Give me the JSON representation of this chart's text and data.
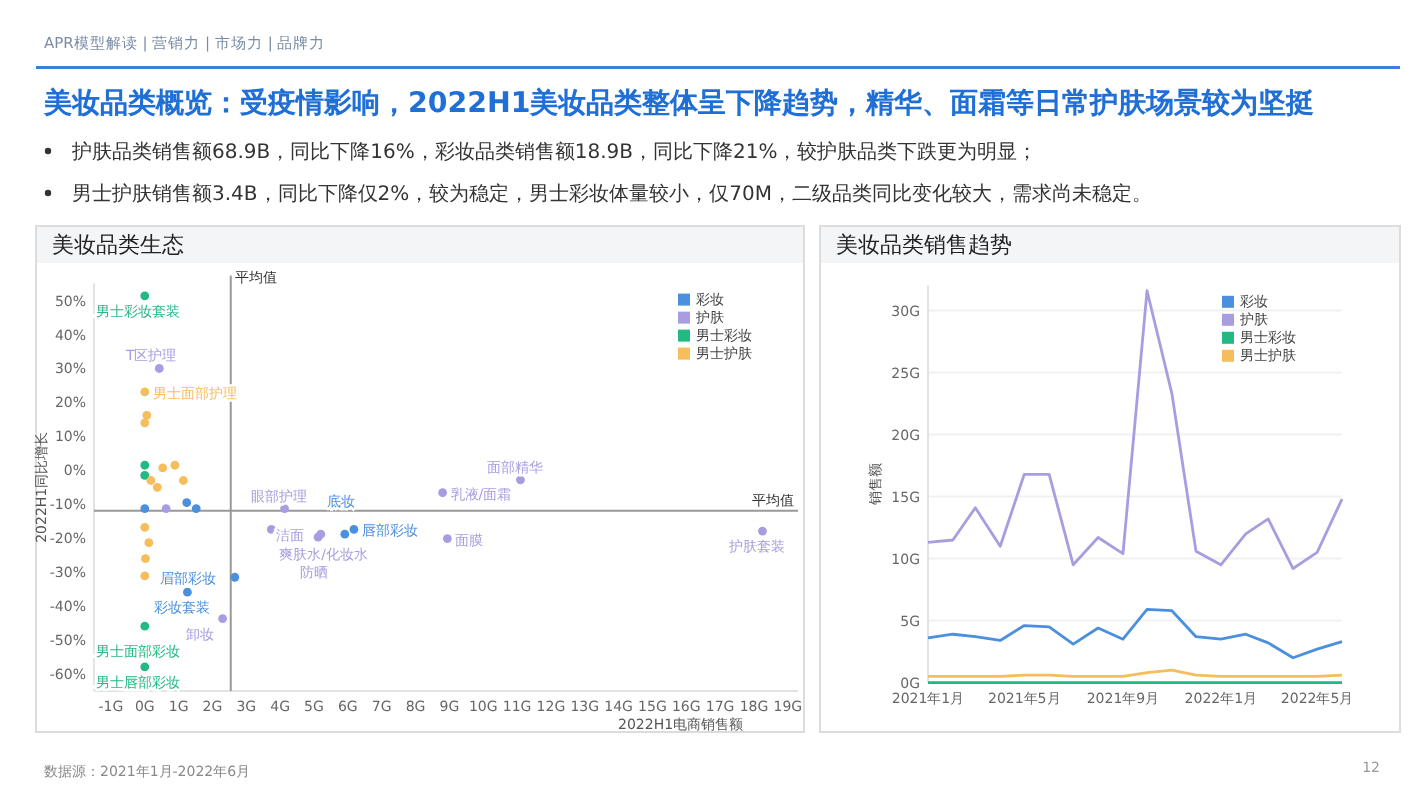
{
  "chart_data": [
    {
      "type": "scatter",
      "title": "美妆品类生态",
      "xlabel": "2022H1电商销售额",
      "ylabel": "2022H1同比增长",
      "xlim": [
        -1.5,
        19.3
      ],
      "ylim": [
        -65,
        55
      ],
      "xticks": [
        {
          "value": -1,
          "label": "-1G"
        },
        {
          "value": 0,
          "label": "0G"
        },
        {
          "value": 1,
          "label": "1G"
        },
        {
          "value": 2,
          "label": "2G"
        },
        {
          "value": 3,
          "label": "3G"
        },
        {
          "value": 4,
          "label": "4G"
        },
        {
          "value": 5,
          "label": "5G"
        },
        {
          "value": 6,
          "label": "6G"
        },
        {
          "value": 7,
          "label": "7G"
        },
        {
          "value": 8,
          "label": "8G"
        },
        {
          "value": 9,
          "label": "9G"
        },
        {
          "value": 10,
          "label": "10G"
        },
        {
          "value": 11,
          "label": "11G"
        },
        {
          "value": 12,
          "label": "12G"
        },
        {
          "value": 13,
          "label": "13G"
        },
        {
          "value": 14,
          "label": "14G"
        },
        {
          "value": 15,
          "label": "15G"
        },
        {
          "value": 16,
          "label": "16G"
        },
        {
          "value": 17,
          "label": "17G"
        },
        {
          "value": 18,
          "label": "18G"
        },
        {
          "value": 19,
          "label": "19G"
        }
      ],
      "yticks": [
        {
          "value": -60,
          "label": "-60%"
        },
        {
          "value": -50,
          "label": "-50%"
        },
        {
          "value": -40,
          "label": "-40%"
        },
        {
          "value": -30,
          "label": "-30%"
        },
        {
          "value": -20,
          "label": "-20%"
        },
        {
          "value": -10,
          "label": "-10%"
        },
        {
          "value": 0,
          "label": "0%"
        },
        {
          "value": 10,
          "label": "10%"
        },
        {
          "value": 20,
          "label": "20%"
        },
        {
          "value": 30,
          "label": "30%"
        },
        {
          "value": 40,
          "label": "40%"
        },
        {
          "value": 50,
          "label": "50%"
        }
      ],
      "legend": "top right",
      "marker": "circle",
      "series": [
        {
          "name": "彩妆",
          "color": "#4b8fdf",
          "x": [
            0,
            1.24,
            1.52,
            2.66,
            1.26,
            5.91,
            6.18
          ],
          "values": [
            -11.3,
            -9.5,
            -11.3,
            -31.5,
            -35.9,
            -18.8,
            -17.4
          ]
        },
        {
          "name": "护肤",
          "color": "#a89de0",
          "x": [
            0.43,
            0.63,
            4.13,
            3.74,
            5.12,
            5.2,
            2.3,
            8.8,
            11.1,
            8.94,
            18.25
          ],
          "values": [
            30,
            -11.3,
            -11.3,
            -17.4,
            -19.7,
            -18.8,
            -43.7,
            -6.6,
            -2.8,
            -20.1,
            -17.9
          ]
        },
        {
          "name": "男士彩妆",
          "color": "#22b983",
          "x": [
            0,
            0,
            0,
            0,
            0
          ],
          "values": [
            51.4,
            1.5,
            -1.5,
            -45.9,
            -57.9
          ]
        },
        {
          "name": "男士护肤",
          "color": "#f6bd5c",
          "x": [
            0,
            0.06,
            0,
            0.18,
            0.37,
            0.53,
            0.89,
            1.14,
            0,
            0.12,
            0.02,
            0
          ],
          "values": [
            23.1,
            16.2,
            14,
            -3,
            -5,
            0.7,
            1.5,
            -3,
            -16.8,
            -21.3,
            -26,
            -31.1
          ]
        }
      ],
      "ref_lines": [
        {
          "axis": "x",
          "value": 2.54,
          "label": "平均值"
        },
        {
          "axis": "y",
          "value": -11.9,
          "label": "平均值"
        }
      ],
      "annotations": [
        "APR模型解读 | 营销力 | 市场力 | 品牌力",
        "美妆品类概览：受疫情影响，2022H1美妆品类整体呈下降趋势，精华、面霜等日常护肤场景较为坚挺",
        "护肤品类销售额68.9B，同比下降16%，彩妆品类销售额18.9B，同比下降21%，较护肤品类下跌更为明显；",
        "男士护肤销售额3.4B，同比下降仅2%，较为稳定，男士彩妆体量较小，仅70M，二级品类同比变化较大，需求尚未稳定。",
        "数据源：2021年1月-2022年6月",
        "12",
        {
          "text": "男士彩妆套装",
          "x": 0,
          "y": 51.4
        },
        {
          "text": "T区护理",
          "x": 0.43,
          "y": 30
        },
        {
          "text": "男士面部护理",
          "x": 0,
          "y": 23.1
        },
        {
          "text": "眼部护理",
          "x": 4.13,
          "y": -11.3
        },
        {
          "text": "洁面",
          "x": 5.2,
          "y": -18.8
        },
        {
          "text": "唇部彩妆",
          "x": 6.18,
          "y": -17.4
        },
        {
          "text": "爽肤水/化妆水",
          "x": 3.74,
          "y": -17.4
        },
        {
          "text": "防晒",
          "x": 5.12,
          "y": -19.7
        },
        {
          "text": "底妆",
          "x": 5.91,
          "y": -18.8
        },
        {
          "text": "眉部彩妆",
          "x": 2.66,
          "y": -31.5
        },
        {
          "text": "彩妆套装",
          "x": 1.26,
          "y": -35.9
        },
        {
          "text": "卸妆",
          "x": 2.3,
          "y": -43.7
        },
        {
          "text": "男士面部彩妆",
          "x": 0,
          "y": -45.9
        },
        {
          "text": "男士唇部彩妆",
          "x": 0,
          "y": -57.9
        },
        {
          "text": "乳液/面霜",
          "x": 8.8,
          "y": -6.6
        },
        {
          "text": "面部精华",
          "x": 11.1,
          "y": -2.8
        },
        {
          "text": "面膜",
          "x": 8.94,
          "y": -20.1
        },
        {
          "text": "护肤套装",
          "x": 18.25,
          "y": -17.9
        }
      ]
    },
    {
      "type": "line",
      "title": "美妆品类销售趋势",
      "ylabel": "销售额",
      "x": [
        "2021-01",
        "2021-02",
        "2021-03",
        "2021-04",
        "2021-05",
        "2021-06",
        "2021-07",
        "2021-08",
        "2021-09",
        "2021-10",
        "2021-11",
        "2021-12",
        "2022-01",
        "2022-02",
        "2022-03",
        "2022-04",
        "2022-05",
        "2022-06"
      ],
      "xlim": [
        "2021-01",
        "2022-06"
      ],
      "xticks": [
        {
          "value": "2021-01",
          "label": "2021年1月"
        },
        {
          "value": "2021-05",
          "label": "2021年5月"
        },
        {
          "value": "2021-09",
          "label": "2021年9月"
        },
        {
          "value": "2022-01",
          "label": "2022年1月"
        },
        {
          "value": "2022-05",
          "label": "2022年5月"
        }
      ],
      "ylim": [
        0,
        32
      ],
      "yticks": [
        {
          "value": 0,
          "label": "0G"
        },
        {
          "value": 5,
          "label": "5G"
        },
        {
          "value": 10,
          "label": "10G"
        },
        {
          "value": 15,
          "label": "15G"
        },
        {
          "value": 20,
          "label": "20G"
        },
        {
          "value": 25,
          "label": "25G"
        },
        {
          "value": 30,
          "label": "30G"
        }
      ],
      "grid": "y",
      "legend": "top right",
      "marker": "none",
      "line_style": "solid",
      "series": [
        {
          "name": "彩妆",
          "color": "#4b8fdf",
          "values": [
            3.6,
            3.9,
            3.7,
            3.4,
            4.6,
            4.5,
            3.1,
            4.4,
            3.5,
            5.9,
            5.8,
            3.7,
            3.5,
            3.9,
            3.2,
            2.0,
            2.7,
            3.3
          ]
        },
        {
          "name": "护肤",
          "color": "#a89de0",
          "values": [
            11.3,
            11.5,
            14.1,
            11.0,
            16.8,
            16.8,
            9.5,
            11.7,
            10.4,
            31.6,
            23.3,
            10.6,
            9.5,
            12.0,
            13.2,
            9.2,
            10.5,
            14.8
          ]
        },
        {
          "name": "男士彩妆",
          "color": "#22b983",
          "values": [
            0,
            0,
            0,
            0,
            0,
            0,
            0,
            0,
            0,
            0,
            0,
            0,
            0,
            0,
            0,
            0,
            0,
            0
          ]
        },
        {
          "name": "男士护肤",
          "color": "#f6bd5c",
          "values": [
            0.5,
            0.5,
            0.5,
            0.5,
            0.6,
            0.6,
            0.5,
            0.5,
            0.5,
            0.8,
            1.0,
            0.6,
            0.5,
            0.5,
            0.5,
            0.5,
            0.5,
            0.6
          ]
        }
      ]
    }
  ]
}
